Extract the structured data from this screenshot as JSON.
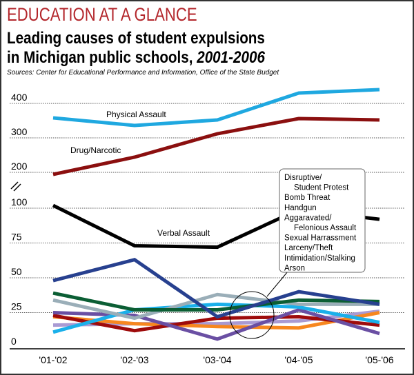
{
  "header": {
    "kicker": "EDUCATION AT A GLANCE",
    "title_line1": "Leading causes of student expulsions",
    "title_line2": "in Michigan public schools, ",
    "title_years": "2001-2006",
    "source": "Sources: Center for Educational Performance and Information, Office of the State Budget"
  },
  "chart_data": {
    "type": "line",
    "categories": [
      "'01-'02",
      "'02-'03",
      "'03-'04",
      "'04-'05",
      "'05-'06"
    ],
    "y_axis": {
      "broken": true,
      "lower_ticks": [
        0,
        25,
        50,
        75,
        100
      ],
      "upper_ticks": [
        200,
        300,
        400
      ],
      "lower_range": [
        0,
        100
      ],
      "upper_range": [
        200,
        400
      ]
    },
    "grid": "dotted horizontal",
    "series": [
      {
        "name": "Physical Assault",
        "color": "#1fa8e0",
        "values": [
          358,
          336,
          352,
          430,
          440
        ]
      },
      {
        "name": "Drug/Narcotic",
        "color": "#8b0f0f",
        "values": [
          194,
          244,
          312,
          356,
          352
        ]
      },
      {
        "name": "Verbal Assault",
        "color": "#000000",
        "values": [
          104,
          73,
          72,
          99,
          92
        ]
      },
      {
        "color": "#27408f",
        "values": [
          48,
          63,
          22,
          40,
          31
        ]
      },
      {
        "color": "#0b5e34",
        "values": [
          39,
          27,
          27,
          34,
          33
        ]
      },
      {
        "color": "#9aaeb8",
        "values": [
          34,
          21,
          38,
          31,
          31
        ]
      },
      {
        "color": "#1ab0ea",
        "values": [
          11,
          27,
          31,
          29,
          18
        ]
      },
      {
        "color": "#6a4fa3",
        "values": [
          25,
          23,
          6,
          27,
          10
        ]
      },
      {
        "color": "#9e0b0b",
        "values": [
          23,
          12,
          21,
          22,
          16
        ]
      },
      {
        "color": "#f7871f",
        "values": [
          22,
          17,
          15,
          14,
          25
        ]
      },
      {
        "color": "#a99ad3",
        "values": [
          16,
          17,
          17,
          19,
          26
        ]
      }
    ],
    "callout_legend": [
      "Disruptive/",
      "Student Protest",
      "Bomb Threat",
      "Handgun",
      "Aggaravated/",
      "Felonious Assault",
      "Sexual Harrassment",
      "Larceny/Theft",
      "Intimidation/Stalking",
      "Arson"
    ]
  }
}
